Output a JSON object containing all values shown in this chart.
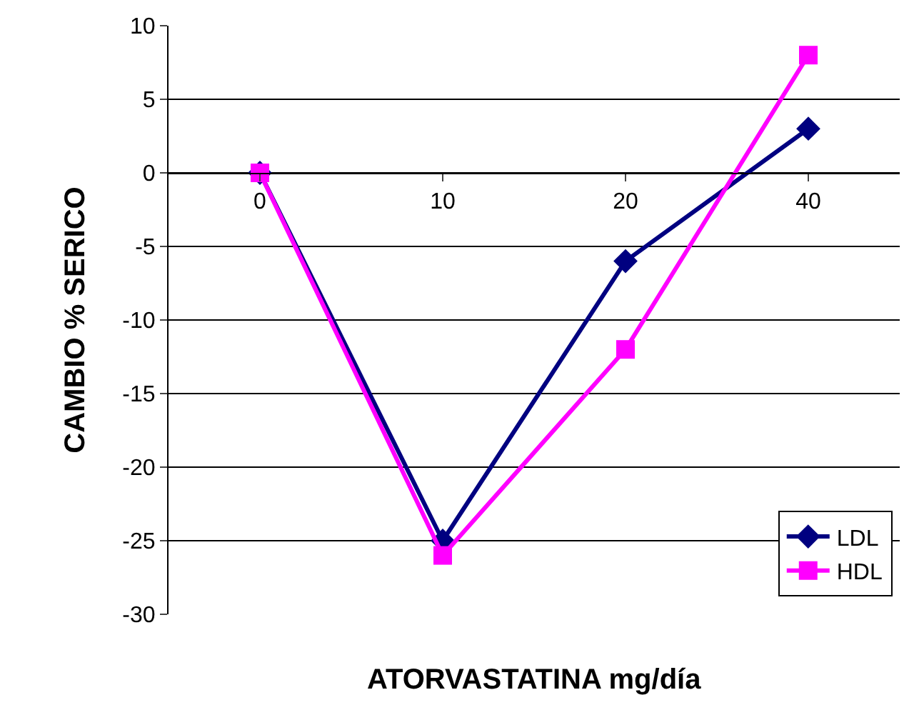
{
  "chart_data": {
    "type": "line",
    "xlabel": "ATORVASTATINA mg/día",
    "ylabel": "CAMBIO % SERICO",
    "categories": [
      "0",
      "10",
      "20",
      "40"
    ],
    "series": [
      {
        "name": "LDL",
        "color": "#000080",
        "marker": "diamond",
        "values": [
          0,
          -25,
          -6,
          3
        ]
      },
      {
        "name": "HDL",
        "color": "#ff00ff",
        "marker": "square",
        "values": [
          0,
          -26,
          -12,
          8
        ]
      }
    ],
    "ylim": [
      -30,
      10
    ],
    "yticks": [
      -30,
      -25,
      -20,
      -15,
      -10,
      -5,
      0,
      5,
      10
    ],
    "grid": "y",
    "legend": "bottom right"
  }
}
